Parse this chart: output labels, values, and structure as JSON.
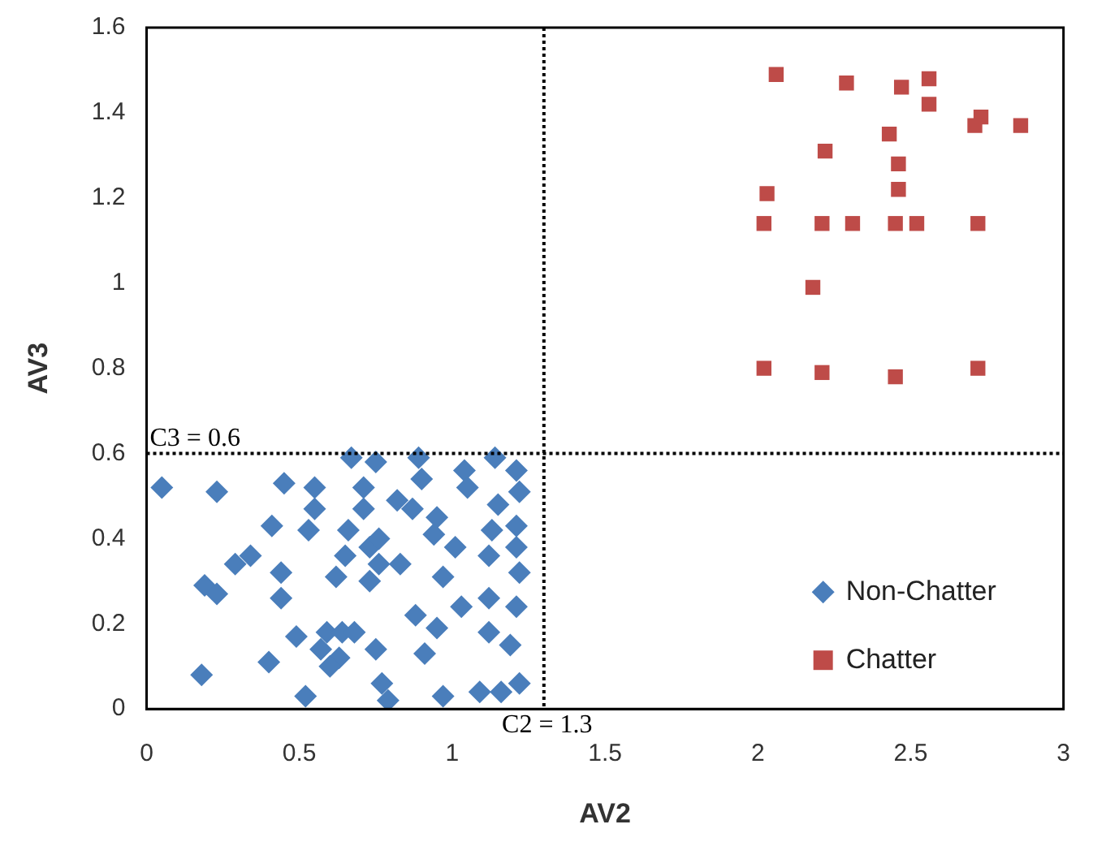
{
  "chart_data": {
    "type": "scatter",
    "xlabel": "AV2",
    "ylabel": "AV3",
    "xlim": [
      0,
      3
    ],
    "xticks": [
      0,
      0.5,
      1,
      1.5,
      2,
      2.5,
      3
    ],
    "ylim": [
      0,
      1.6
    ],
    "yticks": [
      0,
      0.2,
      0.4,
      0.6,
      0.8,
      1,
      1.2,
      1.4,
      1.6
    ],
    "grid": false,
    "legend": "bottom right",
    "ref_lines": [
      {
        "axis": "x",
        "value": 1.3,
        "label": "C2 = 1.3",
        "line_style": "dotted",
        "color": "#000000"
      },
      {
        "axis": "y",
        "value": 0.6,
        "label": "C3 = 0.6",
        "line_style": "dotted",
        "color": "#000000"
      }
    ],
    "series": [
      {
        "name": "Non-Chatter",
        "color": "#4a7ebb",
        "marker": "diamond",
        "x": [
          0.05,
          0.23,
          0.45,
          0.67,
          0.75,
          0.89,
          1.04,
          1.14,
          1.21,
          1.22,
          1.15,
          1.05,
          0.9,
          0.55,
          0.55,
          0.71,
          0.71,
          0.82,
          0.87,
          0.95,
          0.41,
          0.53,
          0.66,
          0.73,
          0.65,
          0.76,
          0.83,
          1.01,
          1.12,
          1.22,
          0.97,
          0.34,
          0.29,
          0.44,
          0.62,
          0.73,
          0.19,
          0.23,
          0.44,
          1.03,
          1.12,
          1.21,
          0.88,
          0.95,
          0.49,
          0.59,
          0.64,
          0.68,
          0.57,
          0.63,
          0.75,
          0.91,
          1.12,
          1.19,
          0.18,
          0.4,
          0.6,
          0.52,
          0.77,
          0.79,
          0.97,
          1.09,
          1.16,
          1.22,
          1.21,
          1.13,
          1.21,
          0.94,
          0.76
        ],
        "values": [
          0.52,
          0.51,
          0.53,
          0.59,
          0.58,
          0.59,
          0.56,
          0.59,
          0.56,
          0.51,
          0.48,
          0.52,
          0.54,
          0.52,
          0.47,
          0.52,
          0.47,
          0.49,
          0.47,
          0.45,
          0.43,
          0.42,
          0.42,
          0.38,
          0.36,
          0.34,
          0.34,
          0.38,
          0.36,
          0.32,
          0.31,
          0.36,
          0.34,
          0.32,
          0.31,
          0.3,
          0.29,
          0.27,
          0.26,
          0.24,
          0.26,
          0.24,
          0.22,
          0.19,
          0.17,
          0.18,
          0.18,
          0.18,
          0.14,
          0.12,
          0.14,
          0.13,
          0.18,
          0.15,
          0.08,
          0.11,
          0.1,
          0.03,
          0.06,
          0.02,
          0.03,
          0.04,
          0.04,
          0.06,
          0.43,
          0.42,
          0.38,
          0.41,
          0.4
        ]
      },
      {
        "name": "Chatter",
        "color": "#be4b48",
        "marker": "square",
        "x": [
          2.06,
          2.29,
          2.47,
          2.56,
          2.56,
          2.73,
          2.71,
          2.86,
          2.43,
          2.22,
          2.46,
          2.46,
          2.03,
          2.02,
          2.21,
          2.31,
          2.45,
          2.52,
          2.72,
          2.18,
          2.02,
          2.21,
          2.45,
          2.72
        ],
        "values": [
          1.49,
          1.47,
          1.46,
          1.48,
          1.42,
          1.39,
          1.37,
          1.37,
          1.35,
          1.31,
          1.28,
          1.22,
          1.21,
          1.14,
          1.14,
          1.14,
          1.14,
          1.14,
          1.14,
          0.99,
          0.8,
          0.79,
          0.78,
          0.8
        ]
      }
    ]
  }
}
